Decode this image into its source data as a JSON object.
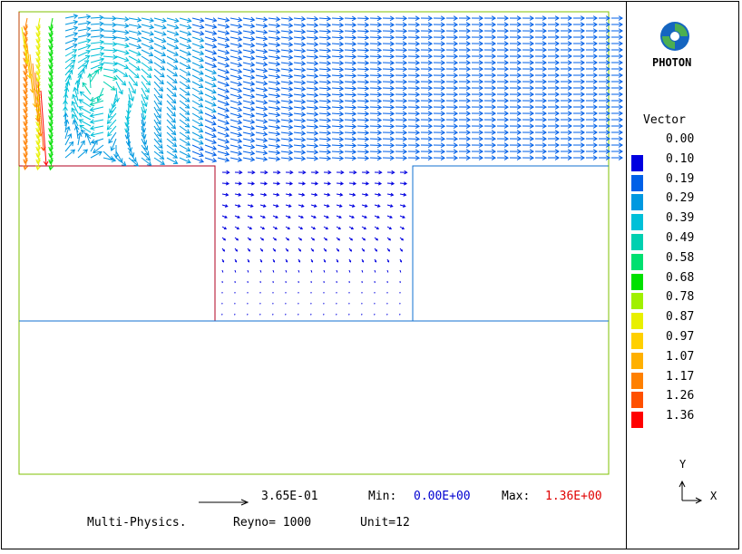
{
  "logo": {
    "text": "PHOTON"
  },
  "legend": {
    "title": "Vector",
    "entries": [
      {
        "value": "0.00",
        "color": "#ffffff"
      },
      {
        "value": "0.10",
        "color": "#0000e0"
      },
      {
        "value": "0.19",
        "color": "#0060e8"
      },
      {
        "value": "0.29",
        "color": "#0098e0"
      },
      {
        "value": "0.39",
        "color": "#00c0d8"
      },
      {
        "value": "0.49",
        "color": "#00d0b0"
      },
      {
        "value": "0.58",
        "color": "#00e070"
      },
      {
        "value": "0.68",
        "color": "#00e000"
      },
      {
        "value": "0.78",
        "color": "#a0f000"
      },
      {
        "value": "0.87",
        "color": "#e8f000"
      },
      {
        "value": "0.97",
        "color": "#ffd000"
      },
      {
        "value": "1.07",
        "color": "#ffb000"
      },
      {
        "value": "1.17",
        "color": "#ff8000"
      },
      {
        "value": "1.26",
        "color": "#ff5000"
      },
      {
        "value": "1.36",
        "color": "#ff0000"
      }
    ]
  },
  "reference": {
    "value": "3.65E-01"
  },
  "range": {
    "min_label": "Min:",
    "min_value": "0.00E+00",
    "min_color": "#0000d0",
    "max_label": "Max:",
    "max_value": "1.36E+00",
    "max_color": "#e00000"
  },
  "footer": {
    "left": "Multi-Physics.",
    "reyno": "Reyno= 1000",
    "unit": "Unit=12"
  },
  "axes": {
    "y": "Y",
    "x": "X"
  }
}
